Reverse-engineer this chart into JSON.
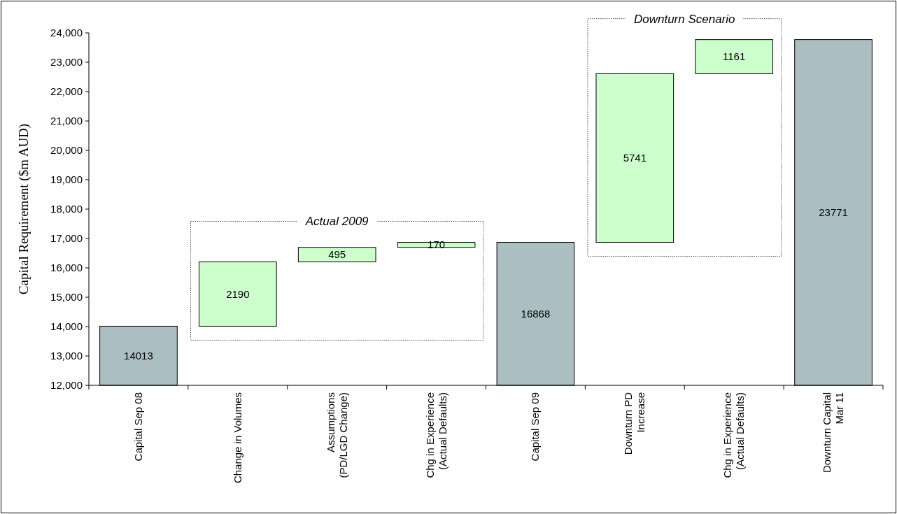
{
  "chart_data": {
    "type": "bar",
    "ylabel": "Capital Requirement ($m AUD)",
    "categories": [
      "Capital Sep 08",
      "Change in Volumes",
      "Assumptions\n(PD/LGD Change)",
      "Chg in Experience\n(Actual Defaults)",
      "Capital Sep 09",
      "Downturn PD\nIncrease",
      "Chg in Experience\n(Actual Defaults)",
      "Downturn Capital\nMar 11"
    ],
    "values": [
      14013,
      2190,
      495,
      170,
      16868,
      5741,
      1161,
      23771
    ],
    "base": [
      null,
      14013,
      16203,
      16698,
      null,
      16868,
      22609,
      null
    ],
    "colors": [
      "#abbfc3",
      "#ccffcc",
      "#ccffcc",
      "#ccffcc",
      "#abbfc3",
      "#ccffcc",
      "#ccffcc",
      "#abbfc3"
    ],
    "data_labels": true,
    "ylim": [
      12000,
      24000
    ],
    "yticks": [
      {
        "value": 12000,
        "label": "12,000"
      },
      {
        "value": 13000,
        "label": "13,000"
      },
      {
        "value": 14000,
        "label": "14,000"
      },
      {
        "value": 15000,
        "label": "15,000"
      },
      {
        "value": 16000,
        "label": "16,000"
      },
      {
        "value": 17000,
        "label": "17,000"
      },
      {
        "value": 18000,
        "label": "18,000"
      },
      {
        "value": 19000,
        "label": "19,000"
      },
      {
        "value": 20000,
        "label": "20,000"
      },
      {
        "value": 21000,
        "label": "21,000"
      },
      {
        "value": 22000,
        "label": "22,000"
      },
      {
        "value": 23000,
        "label": "23,000"
      },
      {
        "value": 24000,
        "label": "24,000"
      }
    ],
    "grid": false,
    "annotations": [
      "Actual 2009",
      "Downturn Scenario"
    ]
  }
}
